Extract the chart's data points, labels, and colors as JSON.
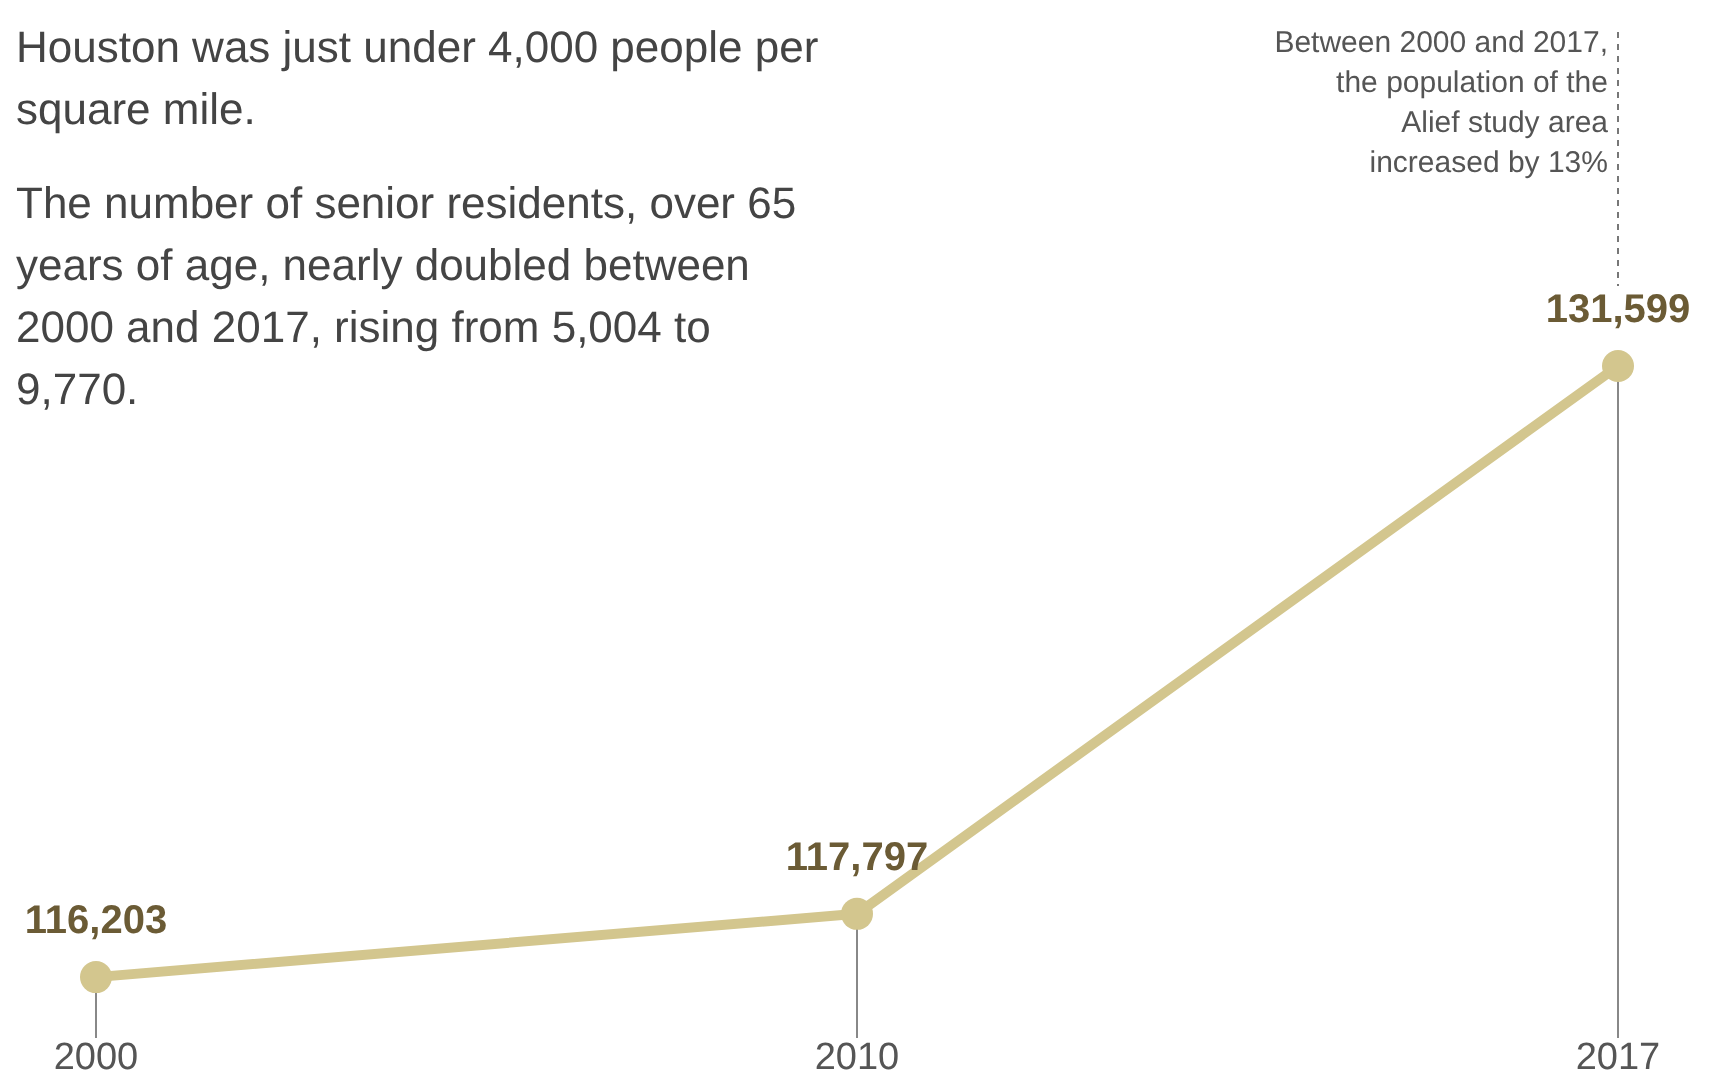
{
  "chart_data": {
    "type": "line",
    "categories": [
      "2000",
      "2010",
      "2017"
    ],
    "series": [
      {
        "color": "#d3c68e",
        "values": [
          116203,
          117797,
          131599
        ],
        "value_labels": [
          "116,203",
          "117,797",
          "131,599"
        ]
      }
    ],
    "marker": "circle",
    "annotations": [
      "Houston was just under 4,000 people per square mile.",
      "The number of senior residents, over 65 years of age, nearly doubled between 2000 and 2017, rising from 5,004 to 9,770.",
      "Between 2000 and 2017, the population of the Alief study area increased by 13%"
    ]
  }
}
